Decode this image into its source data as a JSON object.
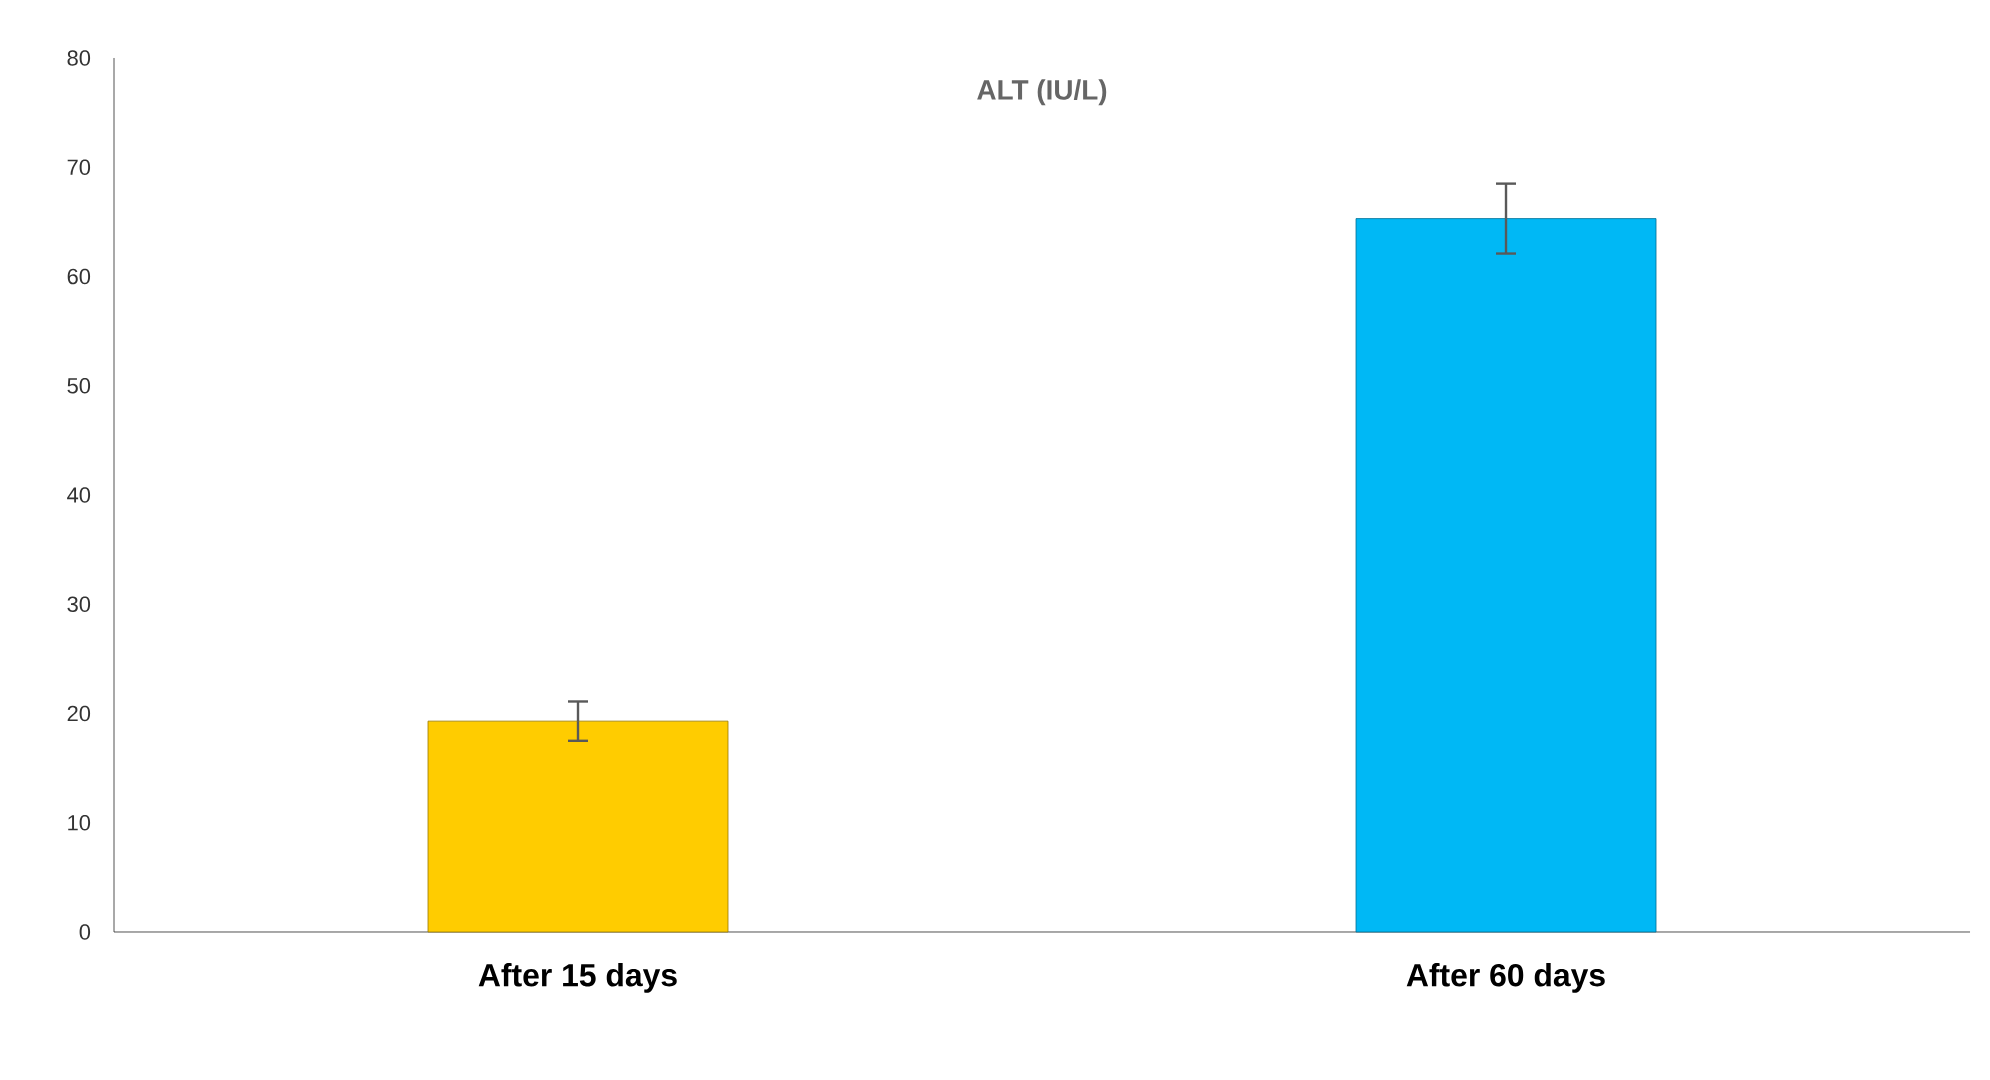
{
  "chart_data": {
    "type": "bar",
    "title": "ALT (IU/L)",
    "categories": [
      "After 15 days",
      "After 60 days"
    ],
    "values": [
      19.3,
      65.3
    ],
    "errors": [
      1.8,
      3.2
    ],
    "colors": [
      "#ffcc00",
      "#00b8f5"
    ],
    "ylim": [
      0,
      80
    ],
    "yticks": [
      0,
      10,
      20,
      30,
      40,
      50,
      60,
      70,
      80
    ],
    "grid": false
  }
}
